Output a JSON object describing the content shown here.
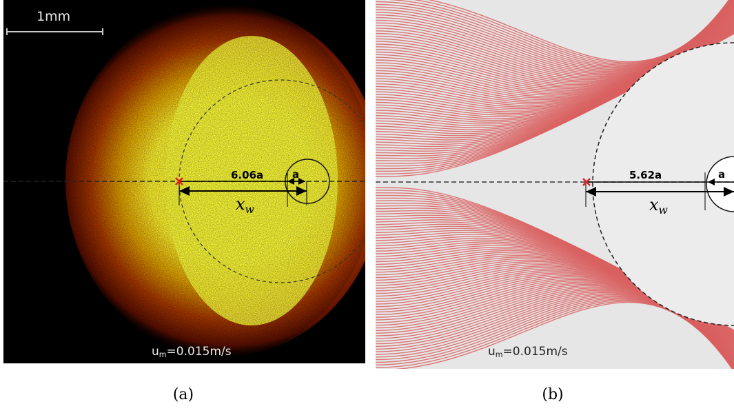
{
  "panel_a": {
    "scale_bar_label": "1mm",
    "distance_label": "6.06a",
    "radius_label": "a",
    "xw_symbol": "x",
    "xw_subscript": "w",
    "velocity_prefix": "u",
    "velocity_subscript": "m",
    "velocity_value": "=0.015m/s",
    "caption": "(a)",
    "colors": {
      "background": "#000000",
      "glow_core": "#ffff33",
      "glow_edge": "#8b1a00",
      "marker": "#e02020"
    }
  },
  "panel_b": {
    "distance_label": "5.62a",
    "radius_label": "a",
    "xw_symbol": "x",
    "xw_subscript": "w",
    "velocity_prefix": "u",
    "velocity_subscript": "m",
    "velocity_value": "=0.015m/s",
    "caption": "(b)",
    "colors": {
      "background": "#e6e6e6",
      "streamline": "#d96060",
      "circle_fill": "#f0f0f0",
      "marker": "#e02020"
    }
  }
}
